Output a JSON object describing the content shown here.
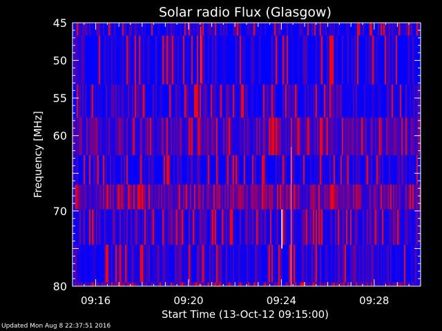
{
  "chart_data": {
    "type": "heatmap",
    "title": "Solar radio Flux (Glasgow)",
    "xlabel": "Start Time (13-Oct-12 09:15:00)",
    "ylabel": "Frequency [MHz]",
    "x_axis_unit": "minutes after 09:15:00",
    "xlim": [
      0.0,
      15.0
    ],
    "ylim": [
      45,
      80
    ],
    "y_inverted": true,
    "xticks": [
      {
        "label": "09:16",
        "value": 1
      },
      {
        "label": "09:20",
        "value": 5
      },
      {
        "label": "09:24",
        "value": 9
      },
      {
        "label": "09:28",
        "value": 13
      }
    ],
    "yticks": [
      {
        "label": "45",
        "value": 45
      },
      {
        "label": "50",
        "value": 50
      },
      {
        "label": "55",
        "value": 55
      },
      {
        "label": "60",
        "value": 60
      },
      {
        "label": "70",
        "value": 70
      },
      {
        "label": "80",
        "value": 80
      }
    ],
    "colors": {
      "low": "#0000ff",
      "high": "#ff0000",
      "background": "#000000",
      "axis": "#ffffff"
    },
    "frequency_bands": [
      {
        "from": 45.0,
        "to": 46.7,
        "level": 0.12
      },
      {
        "from": 46.7,
        "to": 53.2,
        "level": 0.05
      },
      {
        "from": 53.2,
        "to": 57.6,
        "level": 0.15
      },
      {
        "from": 57.6,
        "to": 62.6,
        "level": 0.55
      },
      {
        "from": 62.6,
        "to": 66.5,
        "level": 0.12
      },
      {
        "from": 66.5,
        "to": 69.8,
        "level": 0.75
      },
      {
        "from": 69.8,
        "to": 74.5,
        "level": 0.35
      },
      {
        "from": 74.5,
        "to": 79.5,
        "level": 0.2
      },
      {
        "from": 79.5,
        "to": 80.0,
        "level": 0.6
      }
    ],
    "events": [
      {
        "time": 5.5,
        "from": 45.5,
        "to": 53.0,
        "color": "#ff3030"
      },
      {
        "time": 9.0,
        "from": 69.8,
        "to": 75.0,
        "color": "#ffffff"
      },
      {
        "time": 9.4,
        "from": 61.5,
        "to": 80.0,
        "color": "#ff6060"
      }
    ]
  },
  "footer": "Updated Mon Aug  8 22:37:51 2016"
}
